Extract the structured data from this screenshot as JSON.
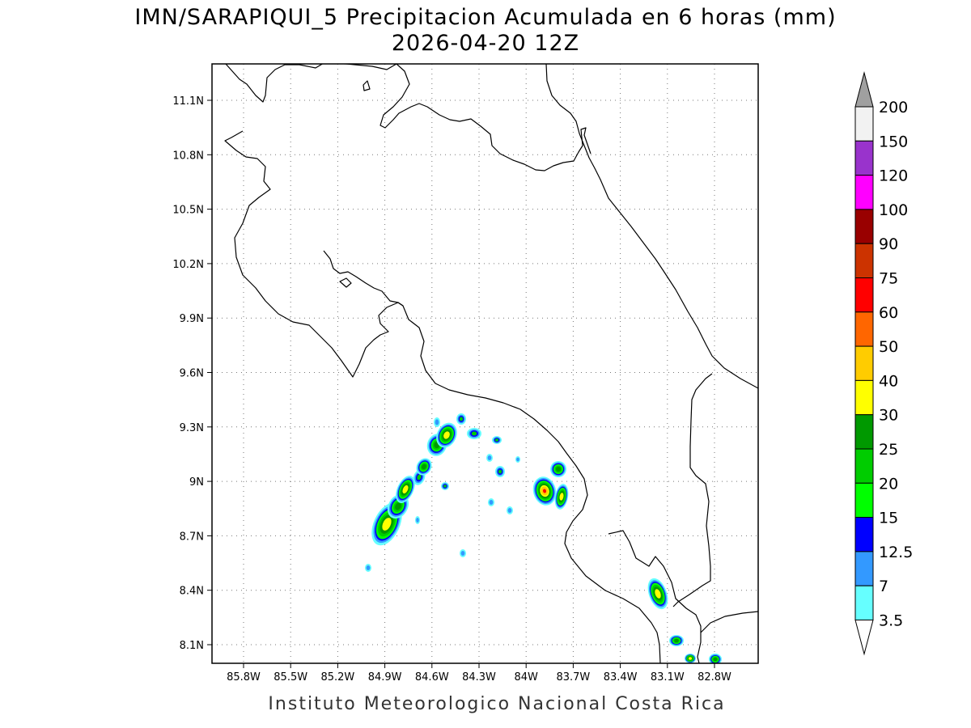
{
  "title": {
    "line1": "IMN/SARAPIQUI_5 Precipitacion Acumulada en 6 horas (mm)",
    "line2": "2026-04-20 12Z"
  },
  "footer": "Instituto Meteorologico Nacional Costa Rica",
  "axes": {
    "x_ticks": [
      "85.8W",
      "85.5W",
      "85.2W",
      "84.9W",
      "84.6W",
      "84.3W",
      "84W",
      "83.7W",
      "83.4W",
      "83.1W",
      "82.8W"
    ],
    "y_ticks": [
      "11.1N",
      "10.8N",
      "10.5N",
      "10.2N",
      "9.9N",
      "9.6N",
      "9.3N",
      "9N",
      "8.7N",
      "8.4N",
      "8.1N"
    ],
    "grid": "dotted"
  },
  "colorbar": {
    "levels": [
      "200",
      "150",
      "120",
      "100",
      "90",
      "75",
      "60",
      "50",
      "40",
      "30",
      "25",
      "20",
      "15",
      "12.5",
      "7",
      "3.5"
    ],
    "colors": [
      "#f2f2f2",
      "#9933cc",
      "#ff00ff",
      "#990000",
      "#cc3300",
      "#ff0000",
      "#ff6600",
      "#ffcc00",
      "#ffff00",
      "#009900",
      "#00cc00",
      "#00ff00",
      "#0000ff",
      "#3399ff",
      "#66ffff"
    ],
    "upper_arrow_color": "#a0a0a0",
    "lower_arrow_color": "#ffffff"
  }
}
